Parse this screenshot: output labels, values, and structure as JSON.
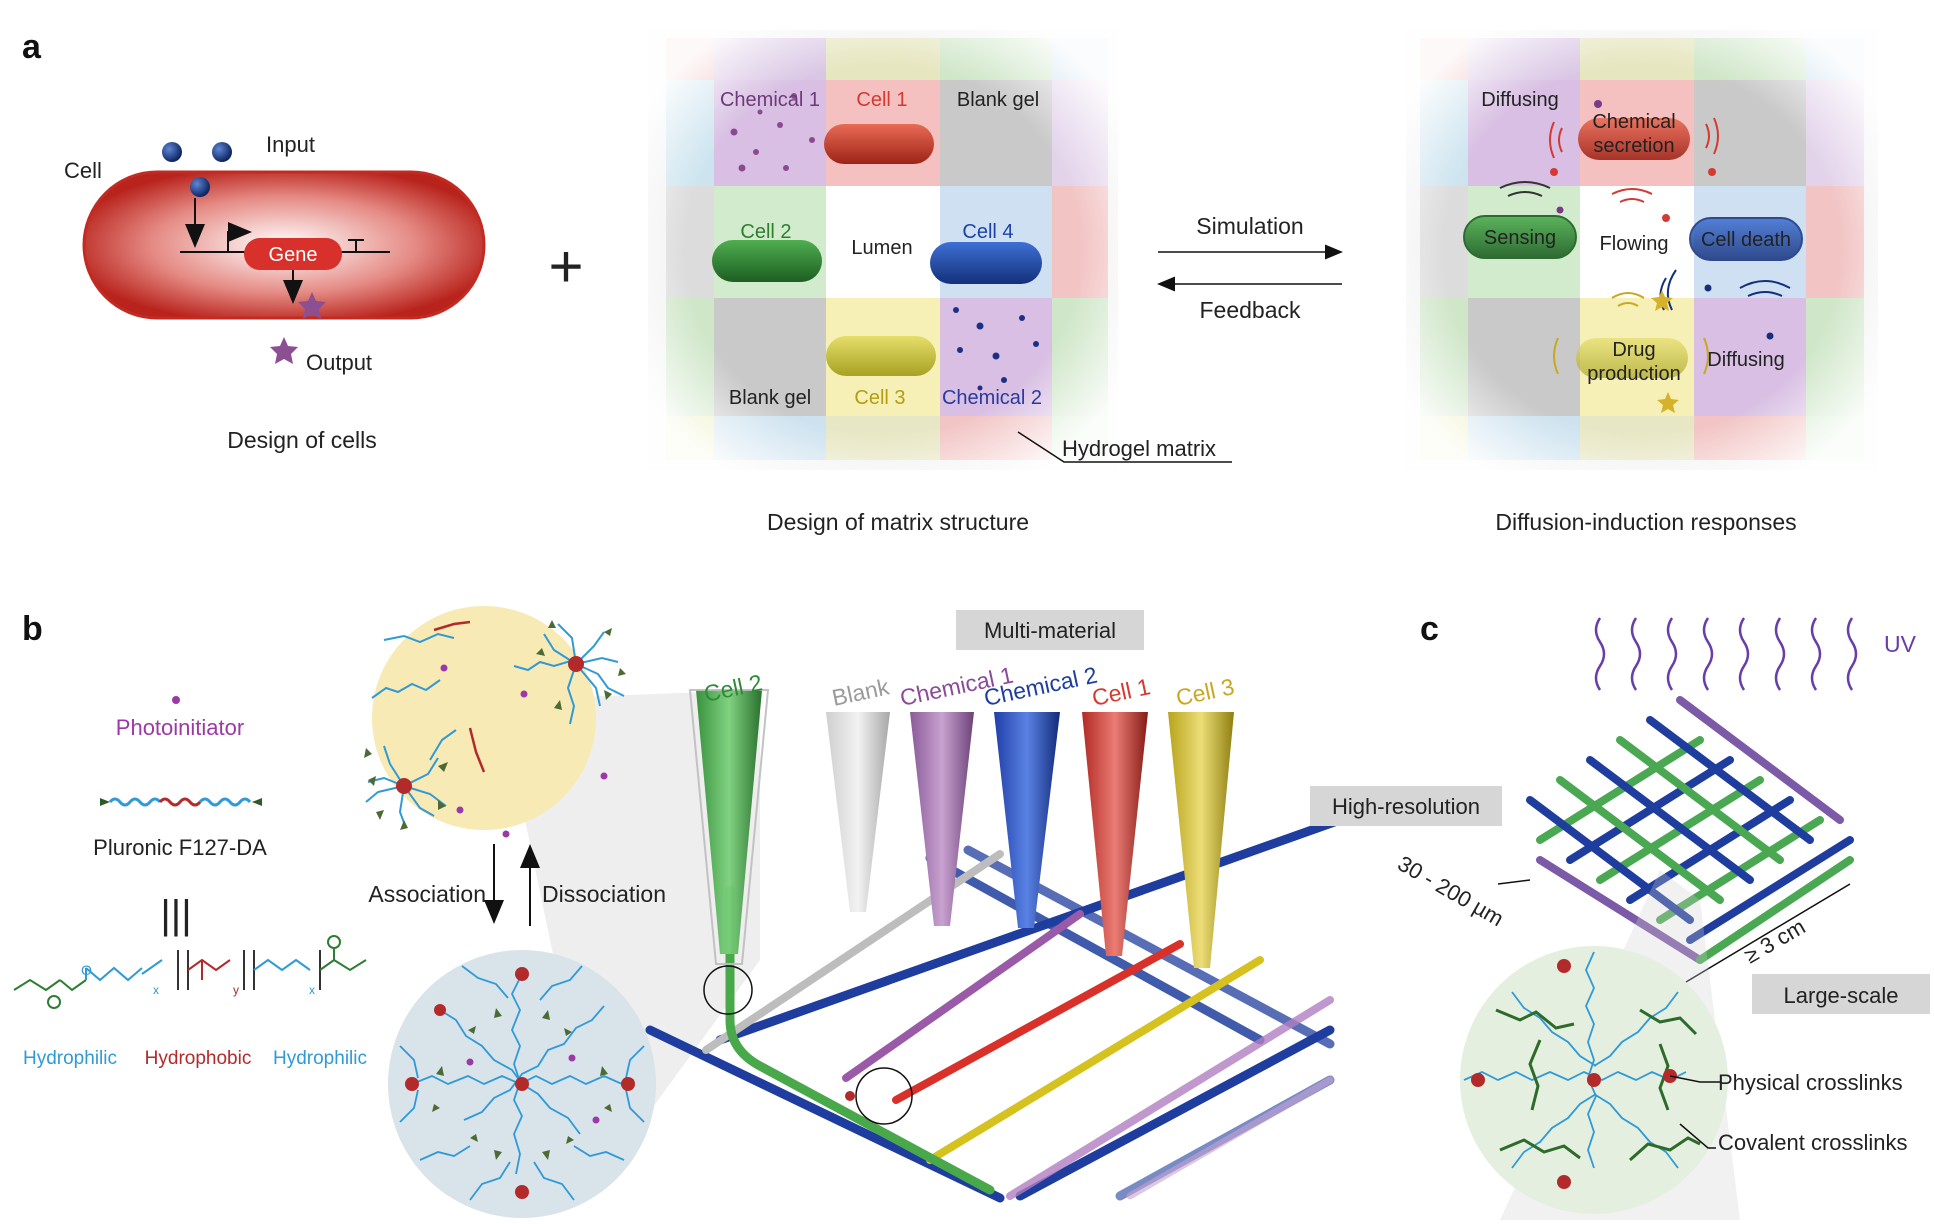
{
  "panel_a": {
    "letter": "a",
    "cell_design": {
      "cell_label": "Cell",
      "input_label": "Input",
      "gene_label": "Gene",
      "output_label": "Output",
      "caption": "Design of cells"
    },
    "plus_sign": "+",
    "matrix": {
      "tiles": [
        "Chemical 1",
        "Cell 1",
        "Blank gel",
        "Cell 2",
        "Lumen",
        "Cell 4",
        "Blank gel",
        "Cell 3",
        "Chemical 2"
      ],
      "callout": "Hydrogel matrix",
      "caption": "Design of matrix structure"
    },
    "arrows": {
      "forward": "Simulation",
      "backward": "Feedback"
    },
    "responses": {
      "tiles": [
        "Diffusing",
        "Chemical",
        "secretion",
        "Sensing",
        "Flowing",
        "Cell death",
        "Drug",
        "production",
        "Diffusing"
      ],
      "caption": "Diffusion-induction responses"
    }
  },
  "panel_b": {
    "letter": "b",
    "photoinitiator": "Photoinitiator",
    "polymer_name": "Pluronic F127-DA",
    "equiv": "|||",
    "segments": [
      "Hydrophilic",
      "Hydrophobic",
      "Hydrophilic"
    ],
    "subscripts": [
      "x",
      "y",
      "x"
    ],
    "association": "Association",
    "dissociation": "Dissociation",
    "multi_material": "Multi-material",
    "nozzles": [
      "Cell 2",
      "Blank",
      "Chemical 1",
      "Chemical 2",
      "Cell 1",
      "Cell 3"
    ]
  },
  "panel_c": {
    "letter": "c",
    "uv": "UV",
    "high_resolution": "High-resolution",
    "resolution_range": "30 - 200 µm",
    "size": "≥ 3 cm",
    "large_scale": "Large-scale",
    "physical": "Physical crosslinks",
    "covalent": "Covalent crosslinks"
  },
  "colors": {
    "cell_red": "#c8312a",
    "cell1": "#e0413a",
    "cell2": "#2e8b36",
    "cell3": "#d6c21f",
    "cell4": "#1f48b0",
    "chem1": "#a56fae",
    "chem2": "#2a3a9c",
    "blank": "#9a9a9a",
    "hydrophilic": "#2f9ad6",
    "hydrophobic": "#b32a2a",
    "photoinitiator": "#9b3aa6",
    "uv": "#6a3ea8"
  }
}
